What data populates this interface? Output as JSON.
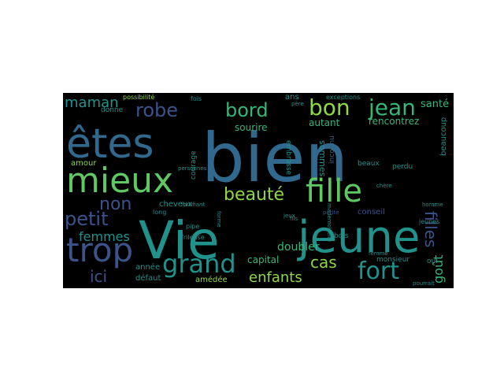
{
  "wordcloud": {
    "background": "#000000",
    "palette": {
      "purple": "#440154",
      "indigo": "#3b528b",
      "blue": "#31688e",
      "teal": "#21918c",
      "green": "#35b779",
      "lime": "#5ec962",
      "light_green": "#90d743"
    },
    "words": [
      {
        "text": "bien",
        "color": "blue"
      },
      {
        "text": "Vie",
        "color": "teal"
      },
      {
        "text": "jeune",
        "color": "teal"
      },
      {
        "text": "êtes",
        "color": "blue"
      },
      {
        "text": "mieux",
        "color": "lime"
      },
      {
        "text": "trop",
        "color": "indigo"
      },
      {
        "text": "fille",
        "color": "lime"
      },
      {
        "text": "grand",
        "color": "teal"
      },
      {
        "text": "fort",
        "color": "teal"
      },
      {
        "text": "bon",
        "color": "light_green"
      },
      {
        "text": "jean",
        "color": "green"
      },
      {
        "text": "robe",
        "color": "indigo"
      },
      {
        "text": "maman",
        "color": "teal"
      },
      {
        "text": "bord",
        "color": "green"
      },
      {
        "text": "beauté",
        "color": "light_green"
      },
      {
        "text": "petit",
        "color": "indigo"
      },
      {
        "text": "non",
        "color": "indigo"
      },
      {
        "text": "femmes",
        "color": "teal"
      },
      {
        "text": "ici",
        "color": "indigo"
      },
      {
        "text": "enfants",
        "color": "light_green"
      },
      {
        "text": "cas",
        "color": "light_green"
      },
      {
        "text": "goût",
        "color": "green"
      },
      {
        "text": "santé",
        "color": "green"
      },
      {
        "text": "filles",
        "color": "indigo"
      },
      {
        "text": "rencontrez",
        "color": "green"
      },
      {
        "text": "capital",
        "color": "green"
      },
      {
        "text": "doubler",
        "color": "green"
      },
      {
        "text": "sourire",
        "color": "green"
      },
      {
        "text": "autant",
        "color": "green"
      },
      {
        "text": "amour",
        "color": "light_green"
      },
      {
        "text": "cheveux",
        "color": "teal"
      },
      {
        "text": "année",
        "color": "teal"
      },
      {
        "text": "défaut",
        "color": "teal"
      },
      {
        "text": "amédée",
        "color": "light_green"
      },
      {
        "text": "sommes",
        "color": "teal"
      },
      {
        "text": "beaucoup",
        "color": "teal"
      },
      {
        "text": "conseil",
        "color": "indigo"
      },
      {
        "text": "courage",
        "color": "teal"
      },
      {
        "text": "embrasse",
        "color": "teal"
      },
      {
        "text": "bois",
        "color": "teal"
      },
      {
        "text": "beaux",
        "color": "teal"
      },
      {
        "text": "perdu",
        "color": "teal"
      },
      {
        "text": "donne",
        "color": "teal"
      },
      {
        "text": "fois",
        "color": "teal"
      },
      {
        "text": "ans",
        "color": "teal"
      },
      {
        "text": "possibilité",
        "color": "light_green"
      },
      {
        "text": "exceptions",
        "color": "teal"
      },
      {
        "text": "inconnu",
        "color": "blue"
      },
      {
        "text": "jeunes",
        "color": "teal"
      },
      {
        "text": "homme",
        "color": "teal"
      },
      {
        "text": "oui",
        "color": "teal"
      },
      {
        "text": "monsieur",
        "color": "teal"
      },
      {
        "text": "pourrait",
        "color": "teal"
      },
      {
        "text": "long",
        "color": "teal"
      },
      {
        "text": "pipe",
        "color": "teal"
      },
      {
        "text": "frileuse",
        "color": "teal"
      },
      {
        "text": "fortifiant",
        "color": "teal"
      },
      {
        "text": "jeux",
        "color": "teal"
      },
      {
        "text": "personnes",
        "color": "teal"
      },
      {
        "text": "fils",
        "color": "teal"
      },
      {
        "text": "père",
        "color": "teal"
      },
      {
        "text": "forme",
        "color": "teal"
      },
      {
        "text": "mademoiselle",
        "color": "teal"
      },
      {
        "text": "petite",
        "color": "indigo"
      },
      {
        "text": "femme",
        "color": "teal"
      },
      {
        "text": "chère",
        "color": "teal"
      }
    ]
  }
}
